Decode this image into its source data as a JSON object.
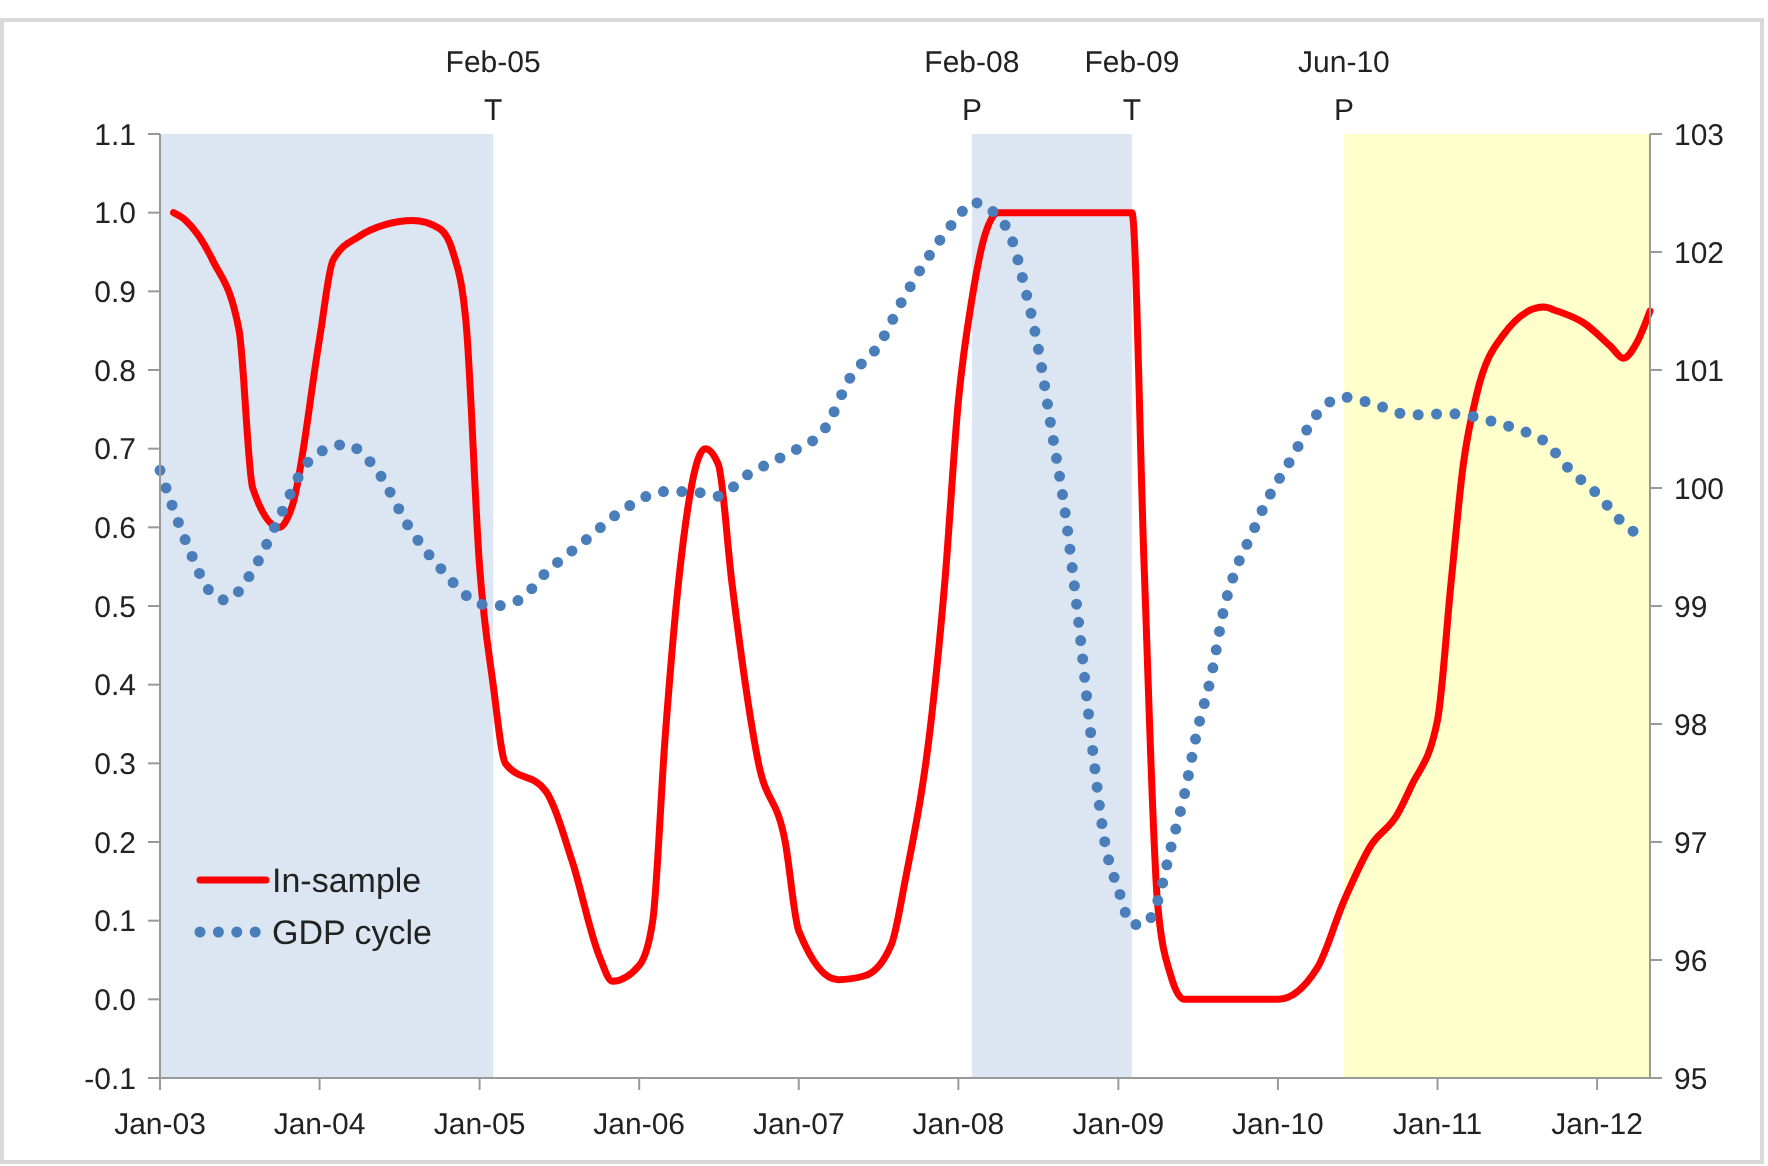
{
  "chart_data": {
    "type": "line",
    "xlim": [
      "2003-01",
      "2012-05"
    ],
    "xticks": [
      {
        "value": "2003-01",
        "label": "Jan-03"
      },
      {
        "value": "2004-01",
        "label": "Jan-04"
      },
      {
        "value": "2005-01",
        "label": "Jan-05"
      },
      {
        "value": "2006-01",
        "label": "Jan-06"
      },
      {
        "value": "2007-01",
        "label": "Jan-07"
      },
      {
        "value": "2008-01",
        "label": "Jan-08"
      },
      {
        "value": "2009-01",
        "label": "Jan-09"
      },
      {
        "value": "2010-01",
        "label": "Jan-10"
      },
      {
        "value": "2011-01",
        "label": "Jan-11"
      },
      {
        "value": "2012-01",
        "label": "Jan-12"
      }
    ],
    "ylim": [
      -0.1,
      1.1
    ],
    "yticks": [
      -0.1,
      {
        "value": 0,
        "label": "0.0"
      },
      0.1,
      0.2,
      0.3,
      0.4,
      0.5,
      0.6,
      0.7,
      0.8,
      0.9,
      {
        "value": 1,
        "label": "1.0"
      },
      1.1
    ],
    "y2lim": [
      95,
      103
    ],
    "y2ticks": [
      95,
      96,
      97,
      98,
      99,
      100,
      101,
      102,
      103
    ],
    "grid": false,
    "legend": "bottom left",
    "bands": [
      {
        "axis": "x",
        "from": "2003-01",
        "to": "2005-02",
        "color": "#dce6f2"
      },
      {
        "axis": "x",
        "from": "2008-02",
        "to": "2009-02",
        "color": "#dce6f2"
      },
      {
        "axis": "x",
        "from": "2010-06",
        "to": "2012-05",
        "color": "#ffffcc"
      }
    ],
    "annotations": [
      "Feb-05\nT",
      "Feb-08\nP",
      "Feb-09\nT",
      "Jun-10\nP"
    ],
    "series": [
      {
        "name": "In-sample",
        "color": "#ff0000",
        "line_style": "solid",
        "x": [
          "2003-02",
          "2003-03",
          "2003-05",
          "2003-07",
          "2003-08",
          "2003-10",
          "2003-11",
          "2004-01",
          "2004-02",
          "2004-04",
          "2004-06",
          "2004-08",
          "2004-10",
          "2004-11",
          "2004-12",
          "2005-01",
          "2005-02",
          "2005-03",
          "2005-06",
          "2005-08",
          "2005-10",
          "2005-11",
          "2006-01",
          "2006-02",
          "2006-03",
          "2006-04",
          "2006-06",
          "2006-07",
          "2006-08",
          "2006-10",
          "2006-12",
          "2007-01",
          "2007-04",
          "2007-06",
          "2007-08",
          "2007-09",
          "2007-11",
          "2007-12",
          "2008-01",
          "2008-02",
          "2008-03",
          "2008-04",
          "2009-02",
          "2009-03",
          "2009-04",
          "2009-05",
          "2009-06",
          "2010-01",
          "2010-04",
          "2010-06",
          "2010-08",
          "2010-10",
          "2010-11",
          "2011-01",
          "2011-02",
          "2011-03",
          "2011-04",
          "2011-06",
          "2011-09",
          "2011-10",
          "2011-12",
          "2012-02",
          "2012-03",
          "2012-04",
          "2012-05"
        ],
        "values": [
          1.0,
          0.99,
          0.94,
          0.85,
          0.65,
          0.6,
          0.63,
          0.84,
          0.94,
          0.97,
          0.985,
          0.99,
          0.98,
          0.95,
          0.86,
          0.55,
          0.4,
          0.3,
          0.265,
          0.175,
          0.056,
          0.023,
          0.043,
          0.1,
          0.33,
          0.53,
          0.7,
          0.68,
          0.53,
          0.3,
          0.2,
          0.087,
          0.025,
          0.03,
          0.07,
          0.15,
          0.36,
          0.53,
          0.76,
          0.89,
          0.97,
          1.0,
          1.0,
          0.55,
          0.12,
          0.03,
          0.0,
          0.0,
          0.04,
          0.125,
          0.195,
          0.235,
          0.27,
          0.355,
          0.53,
          0.68,
          0.77,
          0.845,
          0.88,
          0.875,
          0.86,
          0.83,
          0.815,
          0.835,
          0.875
        ]
      },
      {
        "name": "GDP cycle",
        "color": "#4a7ebb",
        "line_style": "dotted",
        "axis": "y2",
        "x": [
          "2003-01",
          "2003-03",
          "2003-05",
          "2003-06",
          "2003-08",
          "2003-10",
          "2003-12",
          "2004-02",
          "2004-03",
          "2004-05",
          "2004-08",
          "2004-10",
          "2005-01",
          "2005-02",
          "2005-04",
          "2005-06",
          "2005-09",
          "2005-12",
          "2006-03",
          "2006-05",
          "2006-07",
          "2006-09",
          "2006-12",
          "2007-03",
          "2007-05",
          "2007-07",
          "2007-09",
          "2007-11",
          "2008-01",
          "2008-02",
          "2008-04",
          "2008-05",
          "2008-06",
          "2008-07",
          "2008-08",
          "2008-09",
          "2008-10",
          "2008-11",
          "2008-12",
          "2009-01",
          "2009-02",
          "2009-03",
          "2009-04",
          "2009-05",
          "2009-06",
          "2009-07",
          "2009-08",
          "2009-09",
          "2009-10",
          "2009-11",
          "2009-12",
          "2010-02",
          "2010-04",
          "2010-06",
          "2010-08",
          "2010-11",
          "2011-02",
          "2011-05",
          "2011-07",
          "2011-09",
          "2011-11",
          "2012-01",
          "2012-03",
          "2012-04"
        ],
        "values": [
          100.15,
          99.55,
          99.1,
          99.05,
          99.3,
          99.75,
          100.2,
          100.35,
          100.37,
          100.2,
          99.62,
          99.33,
          99.02,
          99.0,
          99.05,
          99.28,
          99.56,
          99.83,
          99.97,
          99.97,
          99.93,
          100.1,
          100.28,
          100.5,
          100.95,
          101.2,
          101.63,
          102.0,
          102.3,
          102.42,
          102.3,
          102.12,
          101.7,
          101.2,
          100.5,
          99.8,
          98.9,
          97.85,
          97.0,
          96.6,
          96.3,
          96.3,
          96.5,
          96.95,
          97.4,
          97.95,
          98.4,
          99.0,
          99.35,
          99.6,
          99.85,
          100.25,
          100.63,
          100.77,
          100.72,
          100.62,
          100.63,
          100.57,
          100.5,
          100.4,
          100.15,
          99.95,
          99.7,
          99.61
        ]
      }
    ]
  }
}
